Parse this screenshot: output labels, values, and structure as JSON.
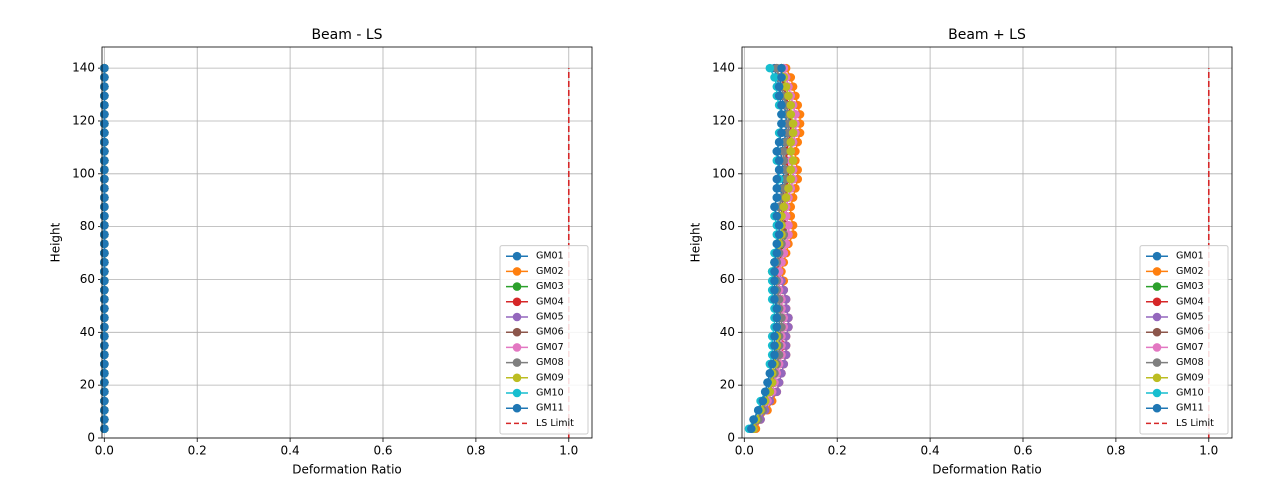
{
  "chart_data": [
    {
      "type": "line",
      "title": "Beam - LS",
      "xlabel": "Deformation Ratio",
      "ylabel": "Height",
      "xlim": [
        -0.005,
        1.05
      ],
      "ylim": [
        0,
        148
      ],
      "xticks": [
        {
          "value": 0,
          "label": "0.0"
        },
        0.2,
        0.4,
        0.6,
        0.8,
        {
          "value": 1,
          "label": "1.0"
        }
      ],
      "yticks": [
        0,
        20,
        40,
        60,
        80,
        100,
        120,
        140
      ],
      "grid": true,
      "legend": "lower right",
      "y": [
        3.5,
        7,
        10.5,
        14,
        17.5,
        21,
        24.5,
        28,
        31.5,
        35,
        38.5,
        42,
        45.5,
        49,
        52.5,
        56,
        59.5,
        63,
        66.5,
        70,
        73.5,
        77,
        80.5,
        84,
        87.5,
        91,
        94.5,
        98,
        101.5,
        105,
        108.5,
        112,
        115.5,
        119,
        122.5,
        126,
        129.5,
        133,
        136.5,
        140
      ],
      "series": [
        {
          "name": "GM01",
          "color": "#1f77b4",
          "values": [
            0,
            0,
            0,
            0,
            0,
            0,
            0,
            0,
            0,
            0,
            0,
            0,
            0,
            0,
            0,
            0,
            0,
            0,
            0,
            0,
            0,
            0,
            0,
            0,
            0,
            0,
            0,
            0,
            0,
            0,
            0,
            0,
            0,
            0,
            0,
            0,
            0,
            0,
            0,
            0
          ]
        },
        {
          "name": "GM02",
          "color": "#ff7f0e",
          "values": [
            0,
            0,
            0,
            0,
            0,
            0,
            0,
            0,
            0,
            0,
            0,
            0,
            0,
            0,
            0,
            0,
            0,
            0,
            0,
            0,
            0,
            0,
            0,
            0,
            0,
            0,
            0,
            0,
            0,
            0,
            0,
            0,
            0,
            0,
            0,
            0,
            0,
            0,
            0,
            0
          ]
        },
        {
          "name": "GM03",
          "color": "#2ca02c",
          "values": [
            0,
            0,
            0,
            0,
            0,
            0,
            0,
            0,
            0,
            0,
            0,
            0,
            0,
            0,
            0,
            0,
            0,
            0,
            0,
            0,
            0,
            0,
            0,
            0,
            0,
            0,
            0,
            0,
            0,
            0,
            0,
            0,
            0,
            0,
            0,
            0,
            0,
            0,
            0,
            0
          ]
        },
        {
          "name": "GM04",
          "color": "#d62728",
          "values": [
            0,
            0,
            0,
            0,
            0,
            0,
            0,
            0,
            0,
            0,
            0,
            0,
            0,
            0,
            0,
            0,
            0,
            0,
            0,
            0,
            0,
            0,
            0,
            0,
            0,
            0,
            0,
            0,
            0,
            0,
            0,
            0,
            0,
            0,
            0,
            0,
            0,
            0,
            0,
            0
          ]
        },
        {
          "name": "GM05",
          "color": "#9467bd",
          "values": [
            0,
            0,
            0,
            0,
            0,
            0,
            0,
            0,
            0,
            0,
            0,
            0,
            0,
            0,
            0,
            0,
            0,
            0,
            0,
            0,
            0,
            0,
            0,
            0,
            0,
            0,
            0,
            0,
            0,
            0,
            0,
            0,
            0,
            0,
            0,
            0,
            0,
            0,
            0,
            0
          ]
        },
        {
          "name": "GM06",
          "color": "#8c564b",
          "values": [
            0,
            0,
            0,
            0,
            0,
            0,
            0,
            0,
            0,
            0,
            0,
            0,
            0,
            0,
            0,
            0,
            0,
            0,
            0,
            0,
            0,
            0,
            0,
            0,
            0,
            0,
            0,
            0,
            0,
            0,
            0,
            0,
            0,
            0,
            0,
            0,
            0,
            0,
            0,
            0
          ]
        },
        {
          "name": "GM07",
          "color": "#e377c2",
          "values": [
            0,
            0,
            0,
            0,
            0,
            0,
            0,
            0,
            0,
            0,
            0,
            0,
            0,
            0,
            0,
            0,
            0,
            0,
            0,
            0,
            0,
            0,
            0,
            0,
            0,
            0,
            0,
            0,
            0,
            0,
            0,
            0,
            0,
            0,
            0,
            0,
            0,
            0,
            0,
            0
          ]
        },
        {
          "name": "GM08",
          "color": "#7f7f7f",
          "values": [
            0,
            0,
            0,
            0,
            0,
            0,
            0,
            0,
            0,
            0,
            0,
            0,
            0,
            0,
            0,
            0,
            0,
            0,
            0,
            0,
            0,
            0,
            0,
            0,
            0,
            0,
            0,
            0,
            0,
            0,
            0,
            0,
            0,
            0,
            0,
            0,
            0,
            0,
            0,
            0
          ]
        },
        {
          "name": "GM09",
          "color": "#bcbd22",
          "values": [
            0,
            0,
            0,
            0,
            0,
            0,
            0,
            0,
            0,
            0,
            0,
            0,
            0,
            0,
            0,
            0,
            0,
            0,
            0,
            0,
            0,
            0,
            0,
            0,
            0,
            0,
            0,
            0,
            0,
            0,
            0,
            0,
            0,
            0,
            0,
            0,
            0,
            0,
            0,
            0
          ]
        },
        {
          "name": "GM10",
          "color": "#17becf",
          "values": [
            0,
            0,
            0,
            0,
            0,
            0,
            0,
            0,
            0,
            0,
            0,
            0,
            0,
            0,
            0,
            0,
            0,
            0,
            0,
            0,
            0,
            0,
            0,
            0,
            0,
            0,
            0,
            0,
            0,
            0,
            0,
            0,
            0,
            0,
            0,
            0,
            0,
            0,
            0,
            0
          ]
        },
        {
          "name": "GM11",
          "color": "#1f77b4",
          "values": [
            0,
            0,
            0,
            0,
            0,
            0,
            0,
            0,
            0,
            0,
            0,
            0,
            0,
            0,
            0,
            0,
            0,
            0,
            0,
            0,
            0,
            0,
            0,
            0,
            0,
            0,
            0,
            0,
            0,
            0,
            0,
            0,
            0,
            0,
            0,
            0,
            0,
            0,
            0,
            0
          ]
        }
      ],
      "limit": {
        "name": "LS Limit",
        "color": "#d62728",
        "value": 1,
        "y": [
          0,
          140
        ]
      }
    },
    {
      "type": "line",
      "title": "Beam + LS",
      "xlabel": "Deformation Ratio",
      "ylabel": "Height",
      "xlim": [
        -0.005,
        1.05
      ],
      "ylim": [
        0,
        148
      ],
      "xticks": [
        {
          "value": 0,
          "label": "0.0"
        },
        0.2,
        0.4,
        0.6,
        0.8,
        {
          "value": 1,
          "label": "1.0"
        }
      ],
      "yticks": [
        0,
        20,
        40,
        60,
        80,
        100,
        120,
        140
      ],
      "grid": true,
      "legend": "lower right",
      "y": [
        3.5,
        7,
        10.5,
        14,
        17.5,
        21,
        24.5,
        28,
        31.5,
        35,
        38.5,
        42,
        45.5,
        49,
        52.5,
        56,
        59.5,
        63,
        66.5,
        70,
        73.5,
        77,
        80.5,
        84,
        87.5,
        91,
        94.5,
        98,
        101.5,
        105,
        108.5,
        112,
        115.5,
        119,
        122.5,
        126,
        129.5,
        133,
        136.5,
        140
      ],
      "series": [
        {
          "name": "GM01",
          "color": "#1f77b4",
          "values": [
            0.015,
            0.025,
            0.035,
            0.045,
            0.05,
            0.055,
            0.06,
            0.065,
            0.07,
            0.07,
            0.07,
            0.075,
            0.075,
            0.07,
            0.07,
            0.065,
            0.065,
            0.06,
            0.065,
            0.07,
            0.075,
            0.08,
            0.08,
            0.075,
            0.075,
            0.08,
            0.08,
            0.085,
            0.085,
            0.08,
            0.08,
            0.085,
            0.09,
            0.09,
            0.09,
            0.085,
            0.08,
            0.075,
            0.07,
            0.065
          ]
        },
        {
          "name": "GM02",
          "color": "#ff7f0e",
          "values": [
            0.025,
            0.035,
            0.05,
            0.06,
            0.07,
            0.075,
            0.08,
            0.085,
            0.09,
            0.09,
            0.09,
            0.095,
            0.095,
            0.09,
            0.09,
            0.085,
            0.085,
            0.08,
            0.085,
            0.09,
            0.095,
            0.105,
            0.105,
            0.1,
            0.1,
            0.105,
            0.11,
            0.115,
            0.115,
            0.11,
            0.11,
            0.115,
            0.12,
            0.12,
            0.12,
            0.115,
            0.11,
            0.105,
            0.1,
            0.09
          ]
        },
        {
          "name": "GM03",
          "color": "#2ca02c",
          "values": [
            0.02,
            0.03,
            0.04,
            0.05,
            0.06,
            0.065,
            0.07,
            0.075,
            0.08,
            0.08,
            0.08,
            0.085,
            0.085,
            0.08,
            0.08,
            0.075,
            0.075,
            0.07,
            0.075,
            0.08,
            0.085,
            0.09,
            0.09,
            0.085,
            0.085,
            0.09,
            0.09,
            0.09,
            0.095,
            0.09,
            0.09,
            0.095,
            0.1,
            0.1,
            0.095,
            0.09,
            0.09,
            0.085,
            0.085,
            0.08
          ]
        },
        {
          "name": "GM04",
          "color": "#d62728",
          "values": [
            0.02,
            0.03,
            0.04,
            0.05,
            0.06,
            0.065,
            0.07,
            0.075,
            0.08,
            0.085,
            0.08,
            0.085,
            0.085,
            0.08,
            0.08,
            0.075,
            0.075,
            0.07,
            0.075,
            0.08,
            0.08,
            0.085,
            0.09,
            0.085,
            0.085,
            0.09,
            0.09,
            0.095,
            0.095,
            0.09,
            0.09,
            0.095,
            0.1,
            0.1,
            0.1,
            0.095,
            0.09,
            0.085,
            0.08,
            0.08
          ]
        },
        {
          "name": "GM05",
          "color": "#9467bd",
          "values": [
            0.02,
            0.035,
            0.045,
            0.055,
            0.07,
            0.075,
            0.08,
            0.085,
            0.09,
            0.09,
            0.09,
            0.095,
            0.095,
            0.09,
            0.09,
            0.085,
            0.08,
            0.075,
            0.08,
            0.085,
            0.09,
            0.095,
            0.095,
            0.09,
            0.09,
            0.095,
            0.1,
            0.105,
            0.105,
            0.1,
            0.1,
            0.105,
            0.11,
            0.11,
            0.11,
            0.105,
            0.1,
            0.095,
            0.09,
            0.085
          ]
        },
        {
          "name": "GM06",
          "color": "#8c564b",
          "values": [
            0.02,
            0.03,
            0.035,
            0.045,
            0.055,
            0.06,
            0.065,
            0.07,
            0.075,
            0.075,
            0.075,
            0.08,
            0.08,
            0.075,
            0.075,
            0.07,
            0.07,
            0.065,
            0.07,
            0.075,
            0.08,
            0.085,
            0.085,
            0.08,
            0.08,
            0.085,
            0.085,
            0.09,
            0.09,
            0.085,
            0.085,
            0.09,
            0.095,
            0.095,
            0.095,
            0.09,
            0.085,
            0.08,
            0.075,
            0.07
          ]
        },
        {
          "name": "GM07",
          "color": "#e377c2",
          "values": [
            0.02,
            0.03,
            0.04,
            0.05,
            0.06,
            0.065,
            0.07,
            0.075,
            0.08,
            0.08,
            0.08,
            0.085,
            0.085,
            0.08,
            0.08,
            0.075,
            0.075,
            0.075,
            0.08,
            0.085,
            0.09,
            0.095,
            0.095,
            0.09,
            0.09,
            0.095,
            0.1,
            0.105,
            0.105,
            0.1,
            0.1,
            0.105,
            0.11,
            0.11,
            0.11,
            0.105,
            0.1,
            0.095,
            0.09,
            0.085
          ]
        },
        {
          "name": "GM08",
          "color": "#7f7f7f",
          "values": [
            0.02,
            0.03,
            0.04,
            0.045,
            0.055,
            0.06,
            0.065,
            0.07,
            0.075,
            0.075,
            0.075,
            0.08,
            0.08,
            0.075,
            0.075,
            0.07,
            0.07,
            0.065,
            0.07,
            0.075,
            0.08,
            0.085,
            0.08,
            0.075,
            0.075,
            0.08,
            0.085,
            0.09,
            0.09,
            0.085,
            0.085,
            0.09,
            0.095,
            0.095,
            0.095,
            0.09,
            0.085,
            0.08,
            0.075,
            0.07
          ]
        },
        {
          "name": "GM09",
          "color": "#bcbd22",
          "values": [
            0.02,
            0.025,
            0.035,
            0.045,
            0.055,
            0.06,
            0.06,
            0.065,
            0.065,
            0.07,
            0.07,
            0.07,
            0.07,
            0.07,
            0.065,
            0.065,
            0.065,
            0.06,
            0.065,
            0.07,
            0.075,
            0.08,
            0.08,
            0.08,
            0.085,
            0.09,
            0.095,
            0.1,
            0.1,
            0.105,
            0.1,
            0.1,
            0.105,
            0.105,
            0.1,
            0.1,
            0.095,
            0.09,
            0.085,
            0.08
          ]
        },
        {
          "name": "GM10",
          "color": "#17becf",
          "values": [
            0.01,
            0.02,
            0.03,
            0.035,
            0.045,
            0.05,
            0.055,
            0.055,
            0.06,
            0.06,
            0.06,
            0.065,
            0.065,
            0.065,
            0.06,
            0.06,
            0.06,
            0.06,
            0.065,
            0.065,
            0.07,
            0.07,
            0.07,
            0.065,
            0.065,
            0.07,
            0.07,
            0.075,
            0.075,
            0.07,
            0.07,
            0.075,
            0.075,
            0.08,
            0.08,
            0.075,
            0.07,
            0.07,
            0.065,
            0.055
          ]
        },
        {
          "name": "GM11",
          "color": "#1f77b4",
          "values": [
            0.015,
            0.02,
            0.03,
            0.04,
            0.045,
            0.05,
            0.055,
            0.06,
            0.065,
            0.065,
            0.065,
            0.07,
            0.07,
            0.07,
            0.065,
            0.065,
            0.065,
            0.065,
            0.065,
            0.07,
            0.07,
            0.075,
            0.075,
            0.07,
            0.065,
            0.07,
            0.07,
            0.07,
            0.075,
            0.075,
            0.07,
            0.075,
            0.08,
            0.08,
            0.08,
            0.08,
            0.075,
            0.075,
            0.08,
            0.08
          ]
        }
      ],
      "limit": {
        "name": "LS Limit",
        "color": "#d62728",
        "value": 1,
        "y": [
          0,
          140
        ]
      }
    }
  ]
}
